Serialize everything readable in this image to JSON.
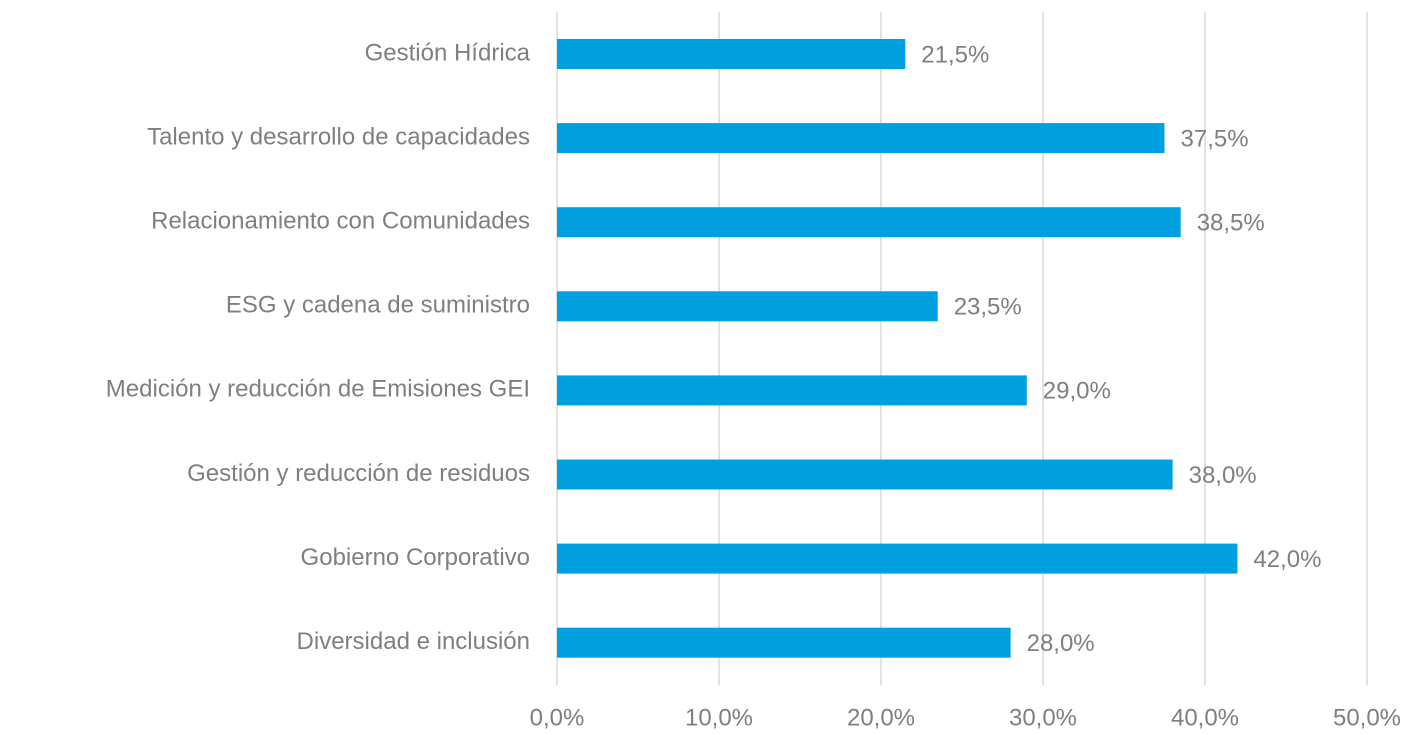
{
  "chart_data": {
    "type": "barh",
    "categories": [
      "Gestión Hídrica",
      "Talento y desarrollo de capacidades",
      "Relacionamiento con Comunidades",
      "ESG y cadena de suministro",
      "Medición y reducción de Emisiones GEI",
      "Gestión y reducción de residuos",
      "Gobierno Corporativo",
      "Diversidad e inclusión"
    ],
    "values": [
      21.5,
      37.5,
      38.5,
      23.5,
      29.0,
      38.0,
      42.0,
      28.0
    ],
    "value_labels": [
      "21,5%",
      "37,5%",
      "38,5%",
      "23,5%",
      "29,0%",
      "38,0%",
      "42,0%",
      "28,0%"
    ],
    "color": "#009fe0",
    "xlim": [
      0,
      50
    ],
    "xticks": [
      {
        "value": 0,
        "label": "0,0%"
      },
      {
        "value": 10,
        "label": "10,0%"
      },
      {
        "value": 20,
        "label": "20,0%"
      },
      {
        "value": 30,
        "label": "30,0%"
      },
      {
        "value": 40,
        "label": "40,0%"
      },
      {
        "value": 50,
        "label": "50,0%"
      }
    ],
    "grid": true
  }
}
